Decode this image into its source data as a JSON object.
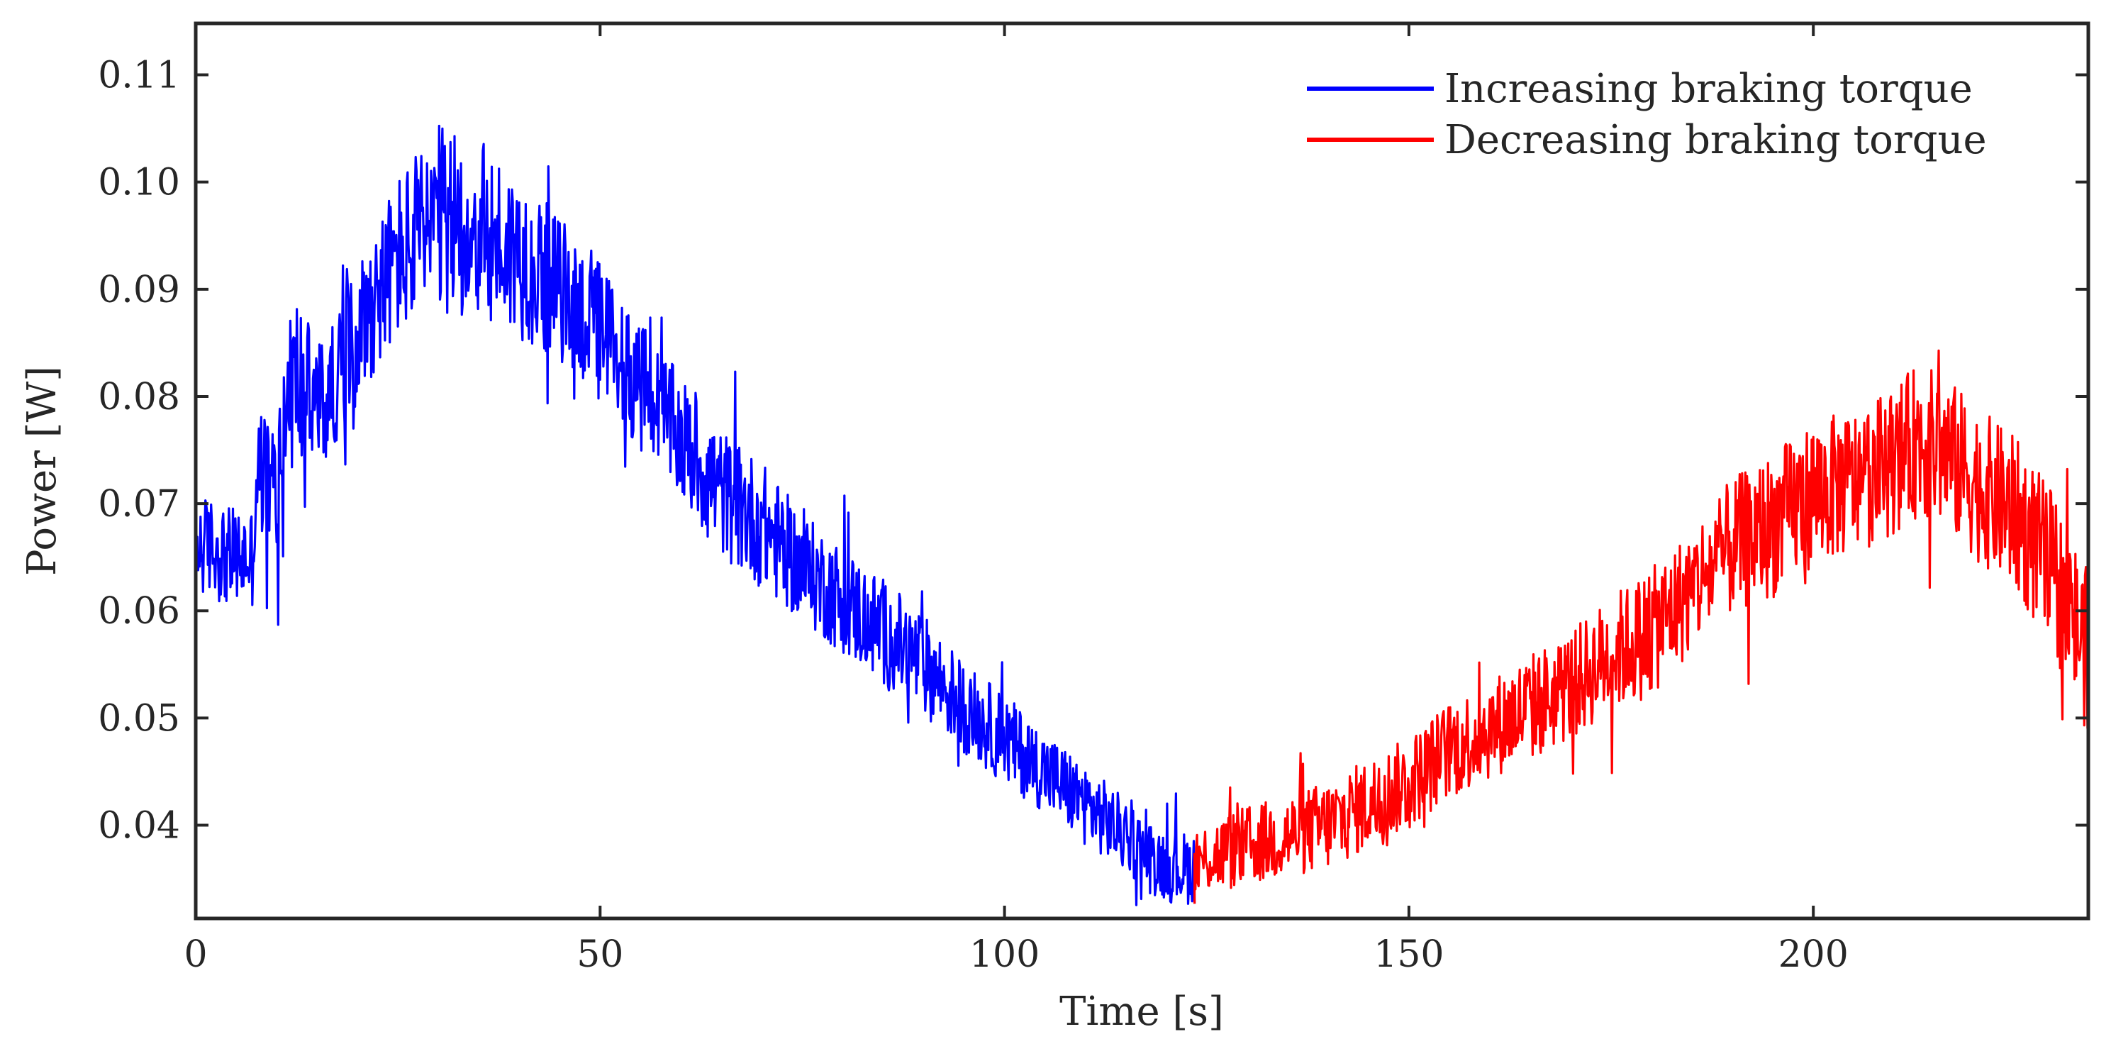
{
  "chart_data": {
    "type": "line",
    "title": "",
    "xlabel": "Time [s]",
    "ylabel": "Power [W]",
    "xlim": [
      0,
      234
    ],
    "ylim": [
      0.0313,
      0.1148
    ],
    "xticks": [
      0,
      50,
      100,
      150,
      200
    ],
    "xtick_labels": [
      "0",
      "50",
      "100",
      "150",
      "200"
    ],
    "yticks": [
      0.04,
      0.05,
      0.06,
      0.07,
      0.08,
      0.09,
      0.1,
      0.11
    ],
    "ytick_labels": [
      "0.04",
      "0.05",
      "0.06",
      "0.07",
      "0.08",
      "0.09",
      "0.10",
      "0.11"
    ],
    "grid": false,
    "legend_position": "top-right",
    "sample_step_s": 0.1,
    "series": [
      {
        "name": "Increasing braking torque",
        "color": "#0000ff",
        "t_start": 0,
        "t_end": 123.5,
        "trend_x": [
          0,
          2,
          4,
          6,
          7,
          7.5,
          8,
          10,
          11,
          12,
          14,
          16,
          18,
          20,
          22,
          25,
          28,
          30,
          33,
          36,
          40,
          45,
          50,
          55,
          60,
          65,
          70,
          75,
          80,
          85,
          90,
          95,
          100,
          105,
          110,
          115,
          118,
          121,
          123.5
        ],
        "trend_y": [
          0.066,
          0.066,
          0.065,
          0.065,
          0.065,
          0.072,
          0.073,
          0.071,
          0.078,
          0.082,
          0.08,
          0.079,
          0.083,
          0.086,
          0.089,
          0.093,
          0.095,
          0.096,
          0.096,
          0.095,
          0.093,
          0.09,
          0.086,
          0.081,
          0.076,
          0.071,
          0.068,
          0.064,
          0.061,
          0.058,
          0.055,
          0.051,
          0.048,
          0.045,
          0.042,
          0.039,
          0.037,
          0.036,
          0.036
        ],
        "noise_amp": [
          0.0055,
          0.0055,
          0.0055,
          0.0055,
          0.0055,
          0.007,
          0.007,
          0.008,
          0.01,
          0.01,
          0.008,
          0.007,
          0.007,
          0.008,
          0.008,
          0.009,
          0.01,
          0.011,
          0.01,
          0.01,
          0.009,
          0.008,
          0.008,
          0.007,
          0.007,
          0.007,
          0.007,
          0.006,
          0.006,
          0.006,
          0.0055,
          0.005,
          0.005,
          0.0045,
          0.0045,
          0.004,
          0.004,
          0.004,
          0.004
        ]
      },
      {
        "name": "Decreasing braking torque",
        "color": "#ff0000",
        "t_start": 123.5,
        "t_end": 234,
        "trend_x": [
          123.5,
          125,
          130,
          135,
          140,
          145,
          150,
          155,
          160,
          165,
          170,
          175,
          180,
          185,
          190,
          195,
          200,
          205,
          210,
          213,
          216,
          220,
          225,
          230,
          234
        ],
        "trend_y": [
          0.036,
          0.037,
          0.038,
          0.039,
          0.04,
          0.042,
          0.044,
          0.047,
          0.049,
          0.051,
          0.053,
          0.056,
          0.058,
          0.062,
          0.066,
          0.068,
          0.071,
          0.072,
          0.074,
          0.076,
          0.075,
          0.072,
          0.069,
          0.063,
          0.056
        ],
        "noise_amp": [
          0.004,
          0.004,
          0.0045,
          0.0045,
          0.005,
          0.005,
          0.005,
          0.0055,
          0.0055,
          0.006,
          0.006,
          0.0065,
          0.007,
          0.007,
          0.0075,
          0.008,
          0.008,
          0.008,
          0.008,
          0.0085,
          0.0085,
          0.0085,
          0.0085,
          0.009,
          0.009
        ]
      }
    ]
  }
}
